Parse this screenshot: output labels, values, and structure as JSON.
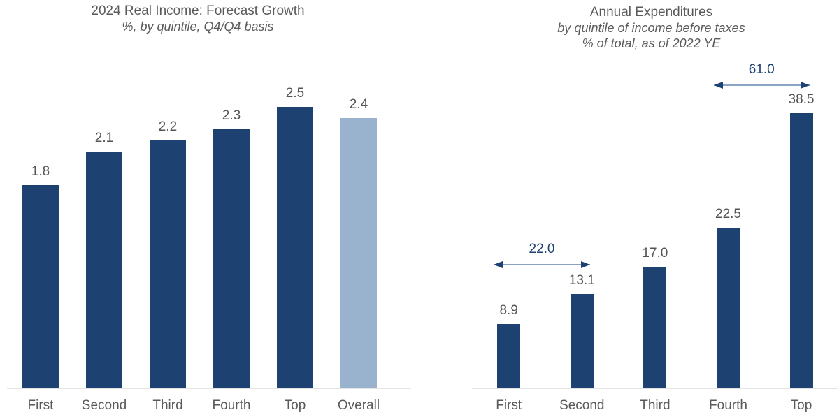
{
  "colors": {
    "bar_navy": "#1d4170",
    "bar_light_blue": "#99b3cf",
    "axis_line": "#e4e4e4",
    "value_label_gray": "#545454",
    "category_label_gray": "#5a5a5a",
    "annotation_navy": "#1d4170",
    "arrow_line_blue": "#89a4c4"
  },
  "chart_data": [
    {
      "type": "bar",
      "title": "2024 Real Income: Forecast Growth",
      "subtitle_lines": [
        "%, by quintile, Q4/Q4  basis"
      ],
      "categories": [
        "First",
        "Second",
        "Third",
        "Fourth",
        "Top",
        "Overall"
      ],
      "values": [
        1.8,
        2.1,
        2.2,
        2.3,
        2.5,
        2.4
      ],
      "data_labels": [
        "1.8",
        "2.1",
        "2.2",
        "2.3",
        "2.5",
        "2.4"
      ],
      "bar_colors": [
        "#1d4170",
        "#1d4170",
        "#1d4170",
        "#1d4170",
        "#1d4170",
        "#99b3cf"
      ],
      "xlabel": "",
      "ylabel": "",
      "value_axis_visible": false,
      "grid": false,
      "legend": false,
      "annotations": []
    },
    {
      "type": "bar",
      "title": "Annual Expenditures",
      "subtitle_lines": [
        "by quintile of income before taxes",
        "% of total, as of 2022 YE"
      ],
      "categories": [
        "First",
        "Second",
        "Third",
        "Fourth",
        "Top"
      ],
      "values": [
        8.9,
        13.1,
        17.0,
        22.5,
        38.5
      ],
      "data_labels": [
        "8.9",
        "13.1",
        "17.0",
        "22.5",
        "38.5"
      ],
      "bar_colors": [
        "#1d4170",
        "#1d4170",
        "#1d4170",
        "#1d4170",
        "#1d4170"
      ],
      "xlabel": "",
      "ylabel": "",
      "value_axis_visible": false,
      "grid": false,
      "legend": false,
      "annotations": [
        {
          "label": "22.0",
          "type": "double-arrow",
          "from_category": "First",
          "to_category": "Second"
        },
        {
          "label": "61.0",
          "type": "double-arrow",
          "from_category": "Fourth",
          "to_category": "Top"
        }
      ]
    }
  ]
}
